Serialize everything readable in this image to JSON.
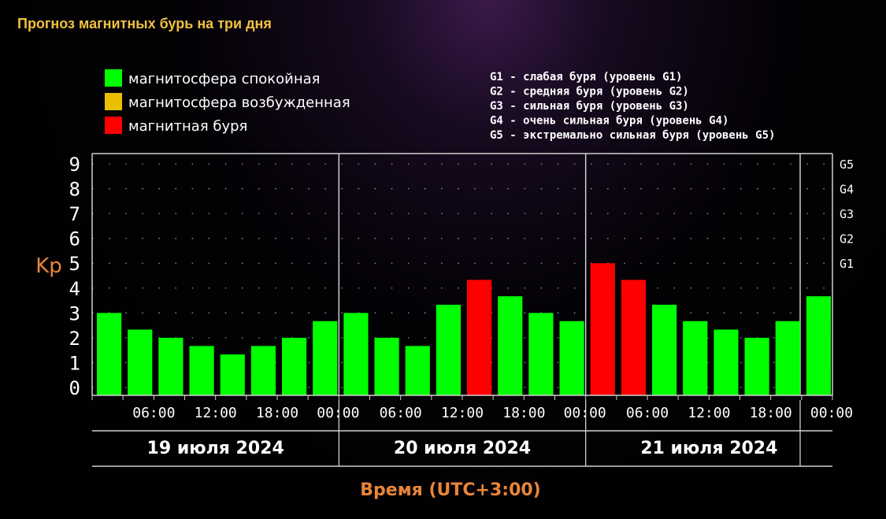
{
  "title": "Прогноз магнитных бурь на три дня",
  "legend": [
    {
      "label": "магнитосфера спокойная",
      "color": "#00ff00"
    },
    {
      "label": "магнитосфера возбужденная",
      "color": "#e8c000"
    },
    {
      "label": "магнитная буря",
      "color": "#ff0000"
    }
  ],
  "g_legend": [
    "G1 - слабая буря (уровень G1)",
    "G2 - средняя буря (уровень G2)",
    "G3 - сильная буря (уровень G3)",
    "G4 - очень сильная буря (уровень G4)",
    "G5 - экстремально сильная буря (уровень G5)"
  ],
  "chart_data": {
    "type": "bar",
    "ylabel": "Kp",
    "xlabel": "Время (UTC+3:00)",
    "ylim": [
      0,
      9
    ],
    "y_ticks": [
      "0",
      "1",
      "2",
      "3",
      "4",
      "5",
      "6",
      "7",
      "8",
      "9"
    ],
    "g_ticks": [
      {
        "label": "G1",
        "kp": 5
      },
      {
        "label": "G2",
        "kp": 6
      },
      {
        "label": "G3",
        "kp": 7
      },
      {
        "label": "G4",
        "kp": 8
      },
      {
        "label": "G5",
        "kp": 9
      }
    ],
    "x_ticks": [
      "06:00",
      "12:00",
      "18:00",
      "00:00",
      "06:00",
      "12:00",
      "18:00",
      "00:00",
      "06:00",
      "12:00",
      "18:00",
      "00:00"
    ],
    "days": [
      "19 июля 2024",
      "20 июля 2024",
      "21 июля 2024"
    ],
    "values": [
      3.0,
      2.33,
      2.0,
      1.67,
      1.33,
      1.67,
      2.0,
      2.67,
      3.0,
      2.0,
      1.67,
      3.33,
      4.33,
      3.67,
      3.0,
      2.67,
      5.0,
      4.33,
      3.33,
      2.67,
      2.33,
      2.0,
      2.67,
      3.67
    ],
    "colors": [
      "green",
      "green",
      "green",
      "green",
      "green",
      "green",
      "green",
      "green",
      "green",
      "green",
      "green",
      "green",
      "red",
      "green",
      "green",
      "green",
      "red",
      "red",
      "green",
      "green",
      "green",
      "green",
      "green",
      "green"
    ],
    "color_map": {
      "green": "#00ff00",
      "red": "#ff0000"
    },
    "grid": true
  }
}
